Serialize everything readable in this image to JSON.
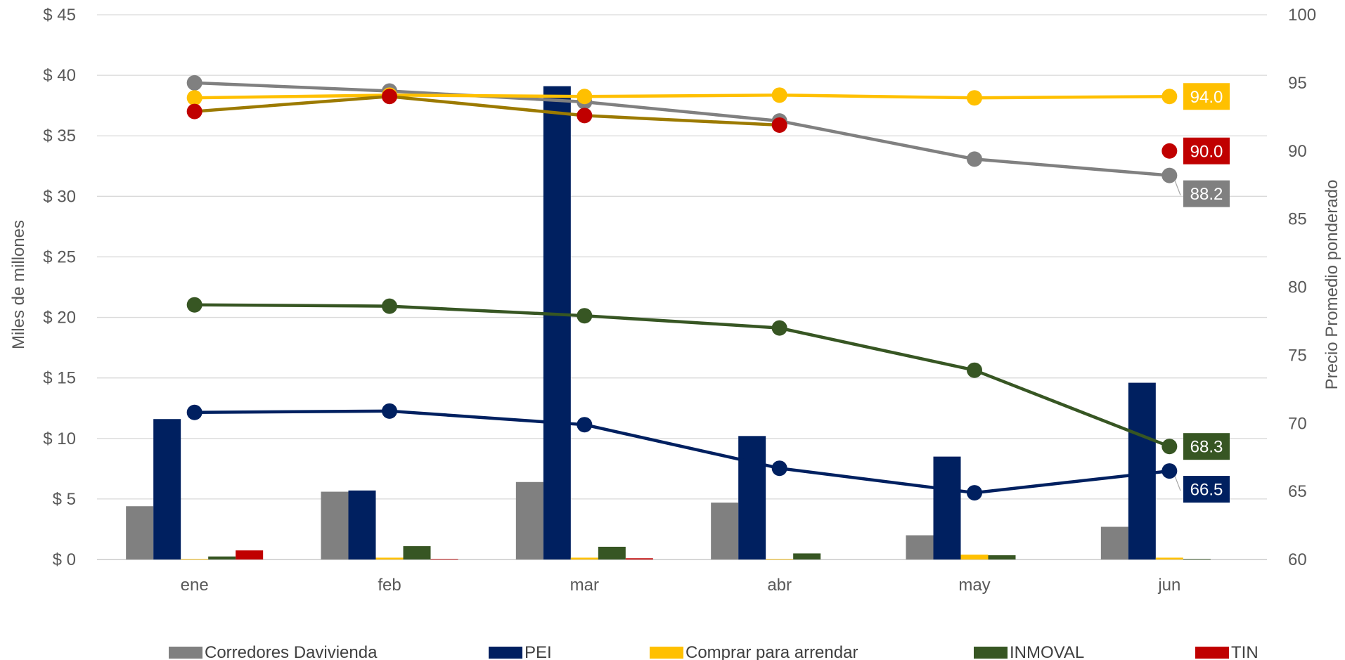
{
  "chart_data": {
    "type": "bar+line",
    "categories": [
      "ene",
      "feb",
      "mar",
      "abr",
      "may",
      "jun"
    ],
    "y_left": {
      "label": "Miles de millones",
      "ylim": [
        0,
        45
      ],
      "ticks": [
        0,
        5,
        10,
        15,
        20,
        25,
        30,
        35,
        40,
        45
      ],
      "tick_labels": [
        "$ 0",
        "$ 5",
        "$ 10",
        "$ 15",
        "$ 20",
        "$ 25",
        "$ 30",
        "$ 35",
        "$ 40",
        "$ 45"
      ]
    },
    "y_right": {
      "label": "Precio Promedio ponderado",
      "ylim": [
        60,
        100
      ],
      "ticks": [
        60,
        65,
        70,
        75,
        80,
        85,
        90,
        95,
        100
      ],
      "tick_labels": [
        "60",
        "65",
        "70",
        "75",
        "80",
        "85",
        "90",
        "95",
        "100"
      ]
    },
    "grid": true,
    "legend_placement": "bottom",
    "bar_series": [
      {
        "name": "Corredores Davivienda",
        "color": "#808080",
        "values": [
          4.4,
          5.6,
          6.4,
          4.7,
          2.0,
          2.7
        ]
      },
      {
        "name": "PEI",
        "color": "#002060",
        "values": [
          11.6,
          5.7,
          39.1,
          10.2,
          8.5,
          14.6
        ]
      },
      {
        "name": "Comprar para arrendar",
        "color": "#FFC000",
        "values": [
          0.05,
          0.15,
          0.15,
          0.05,
          0.4,
          0.15
        ]
      },
      {
        "name": "INMOVAL",
        "color": "#375623",
        "values": [
          0.25,
          1.1,
          1.05,
          0.5,
          0.35,
          0.05
        ]
      },
      {
        "name": "TIN",
        "color": "#C00000",
        "values": [
          0.75,
          0.05,
          0.1,
          0.0,
          0.0,
          0.0
        ]
      }
    ],
    "line_series": [
      {
        "ref": "Corredores Davivienda",
        "color": "#808080",
        "values": [
          95.0,
          94.4,
          93.6,
          92.2,
          89.4,
          88.2
        ],
        "end_label": "88.2",
        "label_offset": 1
      },
      {
        "ref": "PEI",
        "color": "#002060",
        "values": [
          70.8,
          70.9,
          69.9,
          66.7,
          64.9,
          66.5
        ],
        "end_label": "66.5",
        "label_offset": 1
      },
      {
        "ref": "Comprar para arrendar",
        "color": "#FFC000",
        "values": [
          93.9,
          94.1,
          94.0,
          94.1,
          93.9,
          94.0
        ],
        "end_label": "94.0",
        "label_offset": 0
      },
      {
        "ref": "INMOVAL",
        "color": "#375623",
        "values": [
          78.7,
          78.6,
          77.9,
          77.0,
          73.9,
          68.3
        ],
        "end_label": "68.3",
        "label_offset": 0
      },
      {
        "ref": "TIN",
        "color": "#C00000",
        "values": [
          92.9,
          94.0,
          92.6,
          91.9,
          null,
          90.0
        ],
        "end_label": "90.0",
        "label_offset": 0,
        "break_before_last": true,
        "line_color": "#9C7A00"
      }
    ]
  }
}
